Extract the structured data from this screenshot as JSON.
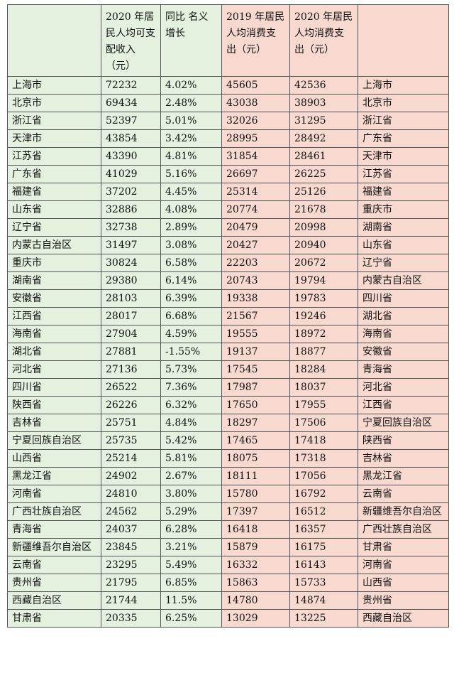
{
  "headers": [
    "",
    "2020 年居民人均可支配收入（元）",
    "同比 名义增长",
    "2019 年居民人均消费支出（元）",
    "2020 年居民人均消费支出（元）",
    ""
  ],
  "rows": [
    [
      "上海市",
      "72232",
      "4.02%",
      "45605",
      "42536",
      "上海市"
    ],
    [
      "北京市",
      "69434",
      "2.48%",
      "43038",
      "38903",
      "北京市"
    ],
    [
      "浙江省",
      "52397",
      "5.01%",
      "32026",
      "31295",
      "浙江省"
    ],
    [
      "天津市",
      "43854",
      "3.42%",
      "28995",
      "28492",
      "广东省"
    ],
    [
      "江苏省",
      "43390",
      "4.81%",
      "31854",
      "28461",
      "天津市"
    ],
    [
      "广东省",
      "41029",
      "5.16%",
      "26697",
      "26225",
      "江苏省"
    ],
    [
      "福建省",
      "37202",
      "4.45%",
      "25314",
      "25126",
      "福建省"
    ],
    [
      "山东省",
      "32886",
      "4.08%",
      "20774",
      "21678",
      "重庆市"
    ],
    [
      "辽宁省",
      "32738",
      "2.89%",
      "20479",
      "20998",
      "湖南省"
    ],
    [
      "内蒙古自治区",
      "31497",
      "3.08%",
      "20427",
      "20940",
      "山东省"
    ],
    [
      "重庆市",
      "30824",
      "6.58%",
      "22203",
      "20672",
      "辽宁省"
    ],
    [
      "湖南省",
      "29380",
      "6.14%",
      "20743",
      "19794",
      "内蒙古自治区"
    ],
    [
      "安徽省",
      "28103",
      "6.39%",
      "19338",
      "19783",
      "四川省"
    ],
    [
      "江西省",
      "28017",
      "6.68%",
      "21567",
      "19246",
      "湖北省"
    ],
    [
      "海南省",
      "27904",
      "4.59%",
      "19555",
      "18972",
      "海南省"
    ],
    [
      "湖北省",
      "27881",
      "-1.55%",
      "19137",
      "18877",
      "安徽省"
    ],
    [
      "河北省",
      "27136",
      "5.73%",
      "17545",
      "18284",
      "青海省"
    ],
    [
      "四川省",
      "26522",
      "7.36%",
      "17987",
      "18037",
      "河北省"
    ],
    [
      "陕西省",
      "26226",
      "6.32%",
      "17650",
      "17955",
      "江西省"
    ],
    [
      "吉林省",
      "25751",
      "4.84%",
      "18297",
      "17506",
      "宁夏回族自治区"
    ],
    [
      "宁夏回族自治区",
      "25735",
      "5.42%",
      "17465",
      "17418",
      "陕西省"
    ],
    [
      "山西省",
      "25214",
      "5.81%",
      "18075",
      "17318",
      "吉林省"
    ],
    [
      "黑龙江省",
      "24902",
      "2.67%",
      "18111",
      "17056",
      "黑龙江省"
    ],
    [
      "河南省",
      "24810",
      "3.80%",
      "15780",
      "16792",
      "云南省"
    ],
    [
      "广西壮族自治区",
      "24562",
      "5.29%",
      "17397",
      "16512",
      "新疆维吾尔自治区"
    ],
    [
      "青海省",
      "24037",
      "6.28%",
      "16418",
      "16357",
      "广西壮族自治区"
    ],
    [
      "新疆维吾尔自治区",
      "23845",
      "3.21%",
      "15879",
      "16175",
      "甘肃省"
    ],
    [
      "云南省",
      "23295",
      "5.49%",
      "16332",
      "16143",
      "河南省"
    ],
    [
      "贵州省",
      "21795",
      "6.85%",
      "15863",
      "15733",
      "山西省"
    ],
    [
      "西藏自治区",
      "21744",
      "11.5%",
      "14780",
      "14874",
      "贵州省"
    ],
    [
      "甘肃省",
      "20335",
      "6.25%",
      "13029",
      "13225",
      "西藏自治区"
    ]
  ]
}
